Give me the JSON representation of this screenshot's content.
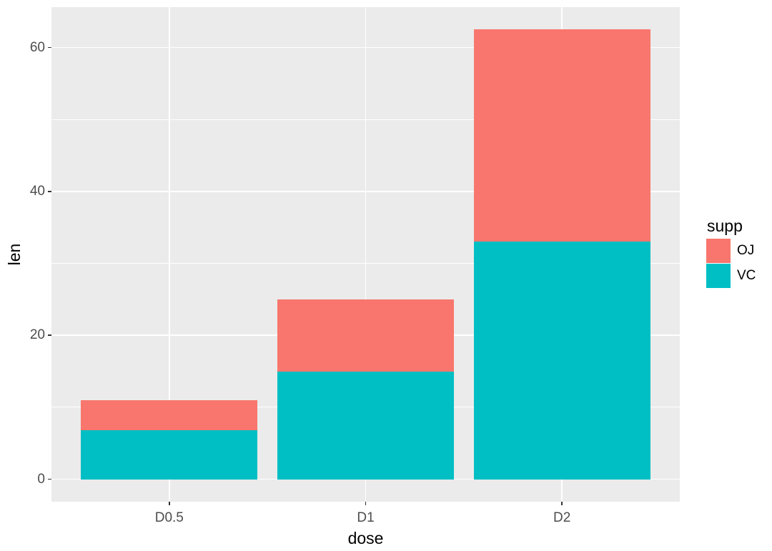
{
  "chart_data": {
    "type": "bar",
    "stacked": true,
    "title": "",
    "xlabel": "dose",
    "ylabel": "len",
    "categories": [
      "D0.5",
      "D1",
      "D2"
    ],
    "series": [
      {
        "name": "OJ",
        "color": "#F8766D",
        "values": [
          4.2,
          10,
          29.5
        ]
      },
      {
        "name": "VC",
        "color": "#00BFC4",
        "values": [
          6.8,
          15,
          33
        ]
      }
    ],
    "stack_order_bottom_to_top": [
      "VC",
      "OJ"
    ],
    "stack_totals": [
      11,
      25,
      62.5
    ],
    "y_ticks": [
      0,
      20,
      40,
      60
    ],
    "y_minor_gridlines": [
      10,
      30,
      50
    ],
    "ylim": [
      -3.125,
      65.625
    ],
    "grid": true,
    "legend": {
      "title": "supp",
      "position": "right",
      "entries": [
        "OJ",
        "VC"
      ]
    },
    "colors": {
      "page_bg": "#FFFFFF",
      "panel_bg": "#EBEBEB",
      "grid": "#FFFFFF",
      "tick_label": "#4D4D4D",
      "axis_title": "#000000",
      "tick_mark": "#333333"
    }
  }
}
